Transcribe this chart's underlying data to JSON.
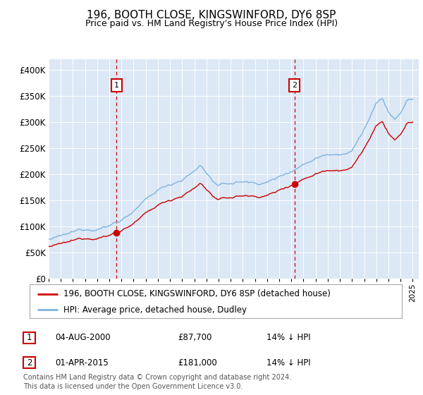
{
  "title": "196, BOOTH CLOSE, KINGSWINFORD, DY6 8SP",
  "subtitle": "Price paid vs. HM Land Registry's House Price Index (HPI)",
  "legend_label_red": "196, BOOTH CLOSE, KINGSWINFORD, DY6 8SP (detached house)",
  "legend_label_blue": "HPI: Average price, detached house, Dudley",
  "annotation1_date": "04-AUG-2000",
  "annotation1_price": "£87,700",
  "annotation1_hpi": "14% ↓ HPI",
  "annotation2_date": "01-APR-2015",
  "annotation2_price": "£181,000",
  "annotation2_hpi": "14% ↓ HPI",
  "footer": "Contains HM Land Registry data © Crown copyright and database right 2024.\nThis data is licensed under the Open Government Licence v3.0.",
  "ylim": [
    0,
    420000
  ],
  "ytick_labels": [
    "£0",
    "£50K",
    "£100K",
    "£150K",
    "£200K",
    "£250K",
    "£300K",
    "£350K",
    "£400K"
  ],
  "ytick_vals": [
    0,
    50000,
    100000,
    150000,
    200000,
    250000,
    300000,
    350000,
    400000
  ],
  "background_color": "#dce8f5",
  "red_color": "#cc0000",
  "blue_color": "#7fb3e0",
  "vline_color": "#cc0000",
  "sale1_x": 2000.6,
  "sale1_y": 87700,
  "sale2_x": 2015.25,
  "sale2_y": 181000,
  "ann_box_color": "#cc0000",
  "xmin": 1995,
  "xmax": 2025.5
}
